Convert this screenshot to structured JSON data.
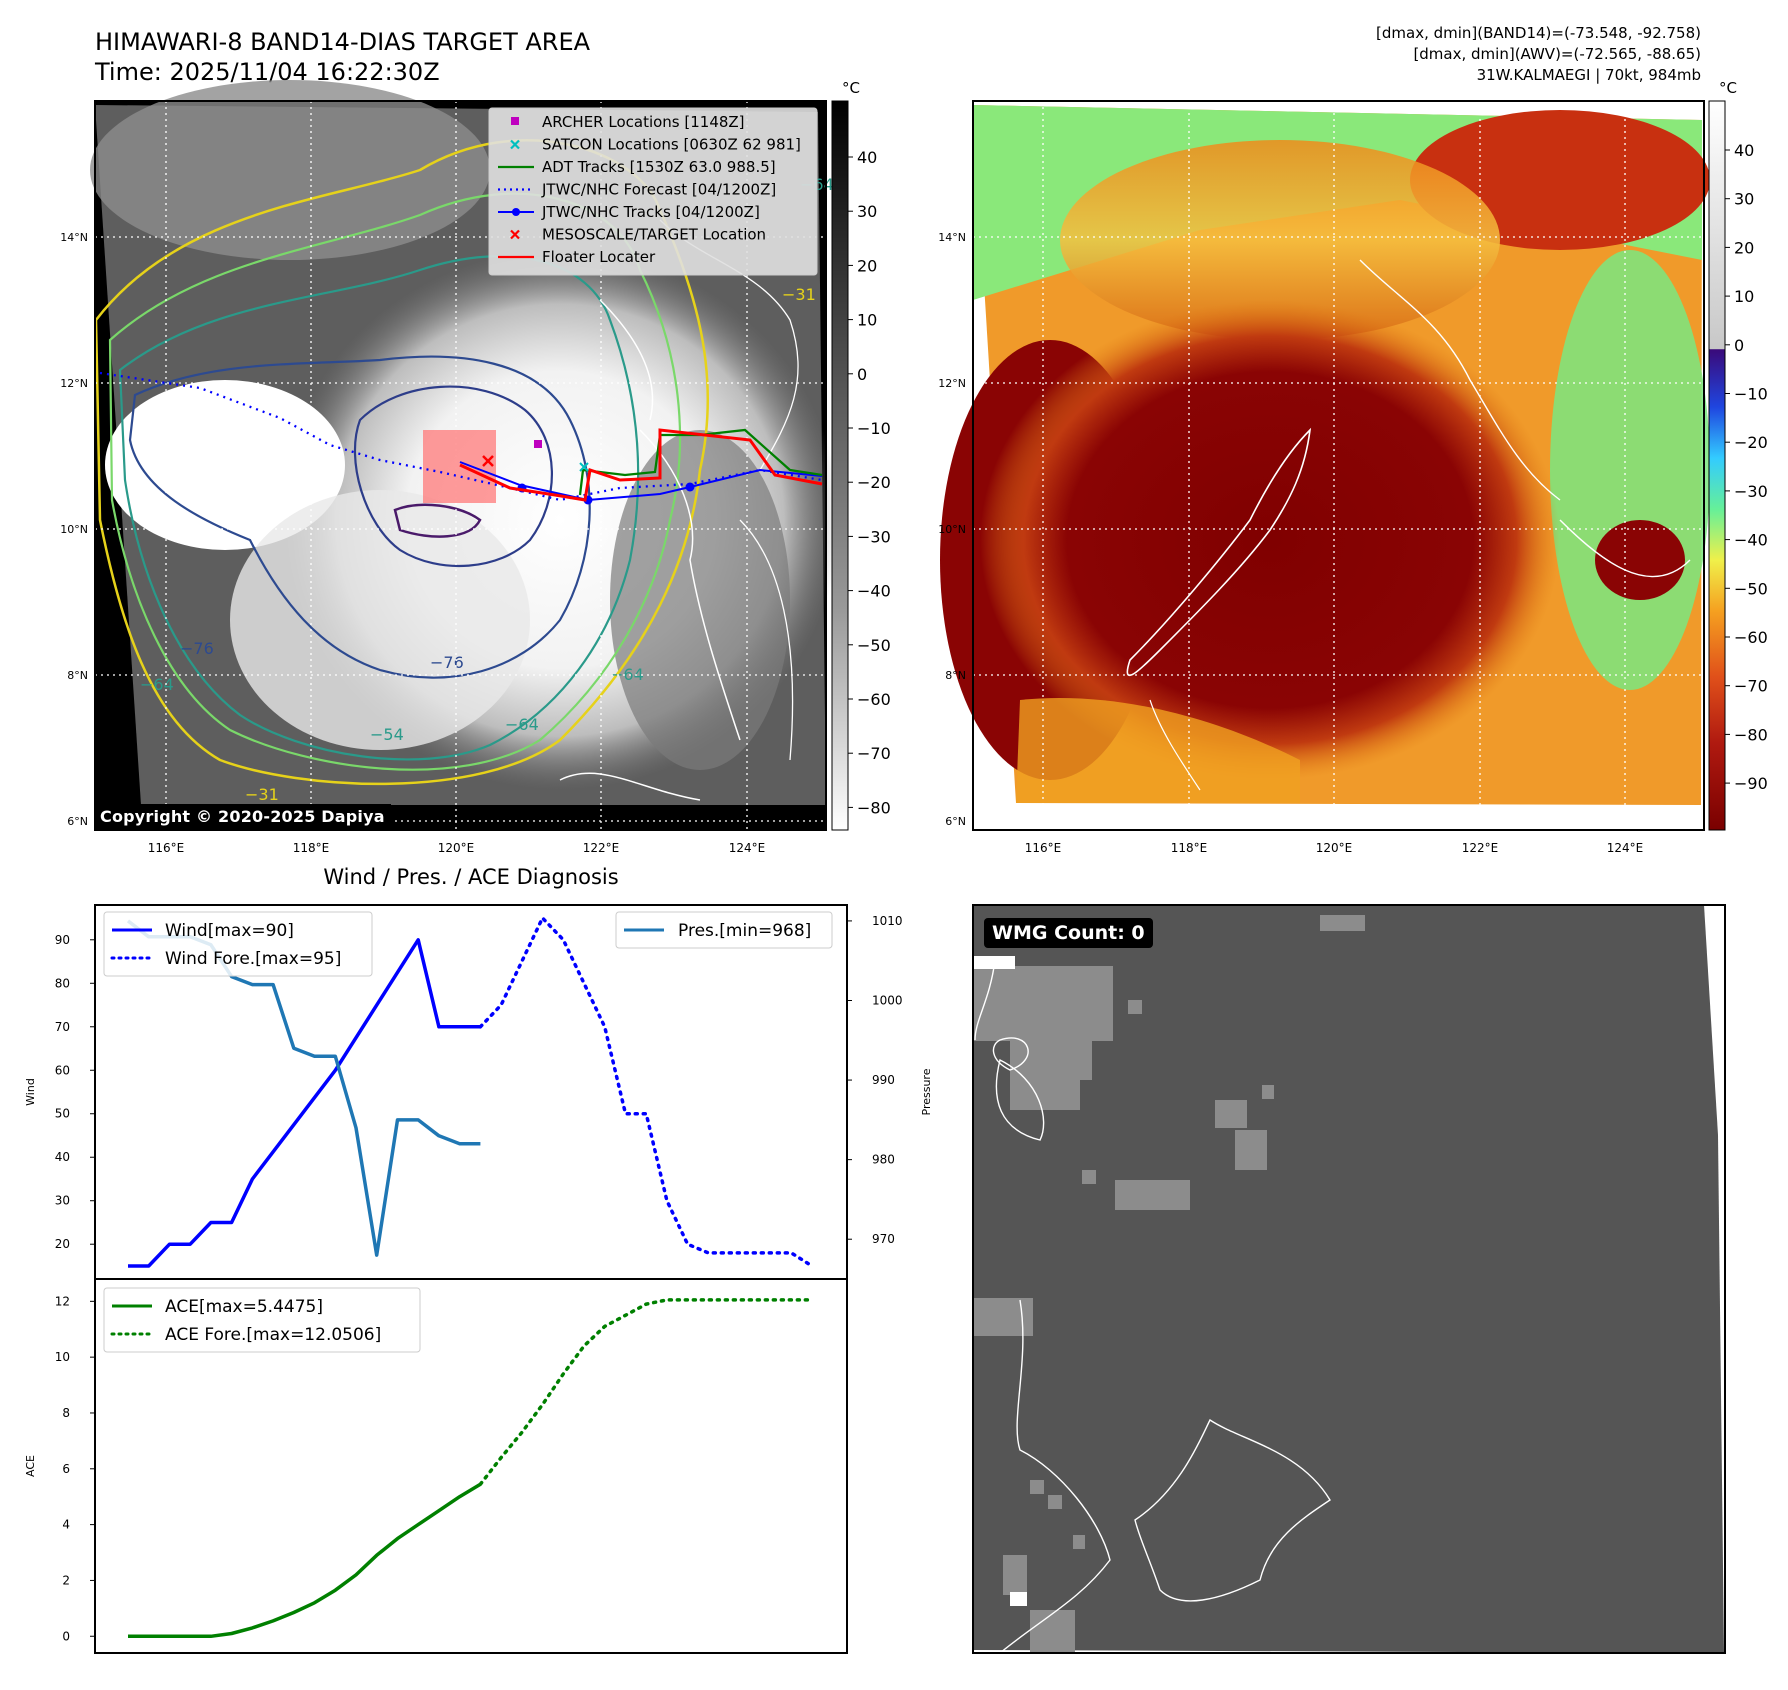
{
  "panel_ir": {
    "title_line1": "HIMAWARI-8 BAND14-DIAS TARGET AREA",
    "title_line2": "Time: 2025/11/04 16:22:30Z",
    "colorbar_unit": "°C",
    "colorbar_ticks": [
      "40",
      "30",
      "20",
      "10",
      "0",
      "−10",
      "−20",
      "−30",
      "−40",
      "−50",
      "−60",
      "−70",
      "−80"
    ],
    "lat_labels": [
      "14°N",
      "12°N",
      "10°N",
      "8°N",
      "6°N"
    ],
    "lon_labels": [
      "116°E",
      "118°E",
      "120°E",
      "122°E",
      "124°E"
    ],
    "copyright": "Copyright © 2020-2025 Dapiya",
    "contour_labels": [
      "−76",
      "−76",
      "−64",
      "−64",
      "−64",
      "−54",
      "−31",
      "−31",
      "−64"
    ],
    "legend": [
      {
        "label": "ARCHER Locations [1148Z]",
        "color": "#bf00bf",
        "kind": "square"
      },
      {
        "label": "SATCON Locations [0630Z 62 981]",
        "color": "#00bfbf",
        "kind": "x"
      },
      {
        "label": "ADT Tracks [1530Z 63.0 988.5]",
        "color": "#008000",
        "kind": "line"
      },
      {
        "label": "JTWC/NHC Forecast [04/1200Z]",
        "color": "#0000ff",
        "kind": "dotted"
      },
      {
        "label": "JTWC/NHC Tracks [04/1200Z]",
        "color": "#0000ff",
        "kind": "line-dot"
      },
      {
        "label": "MESOSCALE/TARGET Location",
        "color": "#ff0000",
        "kind": "x"
      },
      {
        "label": "Floater Locater",
        "color": "#ff0000",
        "kind": "line"
      }
    ]
  },
  "panel_awv": {
    "info_line1": "[dmax, dmin](BAND14)=(-73.548, -92.758)",
    "info_line2": "[dmax, dmin](AWV)=(-72.565, -88.65)",
    "info_line3": "31W.KALMAEGI | 70kt, 984mb",
    "colorbar_unit": "°C",
    "colorbar_ticks": [
      "40",
      "30",
      "20",
      "10",
      "0",
      "−10",
      "−20",
      "−30",
      "−40",
      "−50",
      "−60",
      "−70",
      "−80",
      "−90"
    ],
    "lat_labels": [
      "14°N",
      "12°N",
      "10°N",
      "8°N",
      "6°N"
    ],
    "lon_labels": [
      "116°E",
      "118°E",
      "120°E",
      "122°E",
      "124°E"
    ]
  },
  "panel_wmg": {
    "badge": "WMG Count: 0"
  },
  "chart_data": [
    {
      "type": "line",
      "title": "Wind / Pres. / ACE Diagnosis",
      "xlabel": "",
      "ylabel": "Wind",
      "y2label": "Pressure",
      "ylim": [
        12,
        98
      ],
      "y2lim": [
        965,
        1012
      ],
      "yticks": [
        20,
        30,
        40,
        50,
        60,
        70,
        80,
        90
      ],
      "y2ticks": [
        970,
        980,
        990,
        1000,
        1010
      ],
      "series": [
        {
          "name": "Wind[max=90]",
          "axis": "left",
          "style": "solid",
          "color": "#0000ff",
          "x": [
            0,
            1,
            2,
            3,
            4,
            5,
            6,
            10,
            14,
            15,
            16,
            17
          ],
          "values": [
            15,
            15,
            20,
            20,
            25,
            25,
            35,
            60,
            90,
            70,
            70,
            70
          ]
        },
        {
          "name": "Wind Fore.[max=95]",
          "axis": "left",
          "style": "dotted",
          "color": "#0000ff",
          "x": [
            17,
            18,
            19,
            20,
            21,
            22,
            23,
            24,
            25,
            26,
            27,
            28,
            29,
            30,
            31,
            32,
            33
          ],
          "values": [
            70,
            75,
            85,
            95,
            90,
            80,
            70,
            50,
            50,
            30,
            20,
            18,
            18,
            18,
            18,
            18,
            15
          ]
        },
        {
          "name": "Pres.[min=968]",
          "axis": "right",
          "style": "solid",
          "color": "#1f77b4",
          "x": [
            0,
            1,
            2,
            3,
            4,
            5,
            6,
            7,
            8,
            9,
            10,
            11,
            12,
            13,
            14,
            15,
            16,
            17
          ],
          "values": [
            1010,
            1008,
            1008,
            1008,
            1007,
            1003,
            1002,
            1002,
            994,
            993,
            993,
            984,
            968,
            985,
            985,
            983,
            982,
            982
          ]
        }
      ]
    },
    {
      "type": "line",
      "title": "",
      "xlabel": "",
      "ylabel": "ACE",
      "ylim": [
        -0.6,
        12.8
      ],
      "yticks": [
        0,
        2,
        4,
        6,
        8,
        10,
        12
      ],
      "series": [
        {
          "name": "ACE[max=5.4475]",
          "style": "solid",
          "color": "#008000",
          "x": [
            0,
            1,
            2,
            3,
            4,
            5,
            6,
            7,
            8,
            9,
            10,
            11,
            12,
            13,
            14,
            15,
            16,
            17
          ],
          "values": [
            0,
            0,
            0,
            0,
            0,
            0.1,
            0.3,
            0.55,
            0.85,
            1.2,
            1.65,
            2.2,
            2.9,
            3.5,
            4.0,
            4.5,
            5.0,
            5.4475
          ]
        },
        {
          "name": "ACE Fore.[max=12.0506]",
          "style": "dotted",
          "color": "#008000",
          "x": [
            17,
            18,
            19,
            20,
            21,
            22,
            23,
            24,
            25,
            26,
            27,
            28,
            29,
            30,
            31,
            32,
            33
          ],
          "values": [
            5.4475,
            6.4,
            7.3,
            8.3,
            9.4,
            10.4,
            11.1,
            11.5,
            11.9,
            12.0506,
            12.0506,
            12.0506,
            12.0506,
            12.0506,
            12.0506,
            12.0506,
            12.0506
          ]
        }
      ]
    }
  ]
}
